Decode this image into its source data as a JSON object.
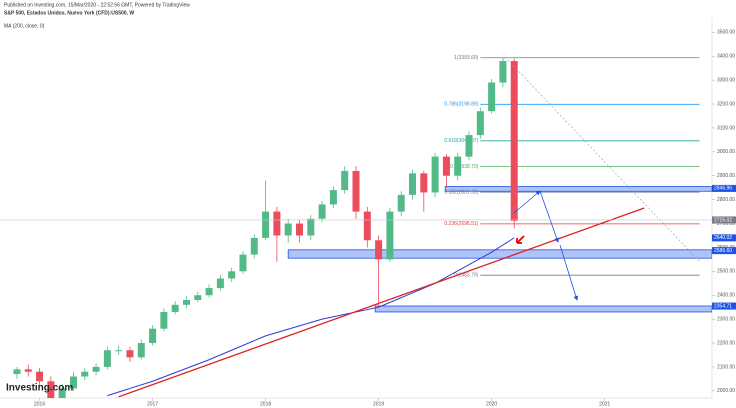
{
  "chart_data": {
    "type": "candlestick",
    "title": "S&P 500, Estados Unidos, Nuevo York (CFD):US500, W",
    "subtitle": "Published on Investing.com, 15/Mar/2020 - 22:52:56 GMT, Powered by TradingView",
    "indicator_label": "MA (200, close, 0)",
    "logo": "Investing.com",
    "xlim": [
      2015.65,
      2021.95
    ],
    "xticks": [
      2016,
      2017,
      2018,
      2019,
      2020,
      2021
    ],
    "ylim": [
      1970,
      3560
    ],
    "yticks": [
      {
        "value": 2000,
        "label": "2000.00"
      },
      {
        "value": 2100,
        "label": "2100.00"
      },
      {
        "value": 2200,
        "label": "2200.00"
      },
      {
        "value": 2300,
        "label": "2300.00"
      },
      {
        "value": 2400,
        "label": "2400.00"
      },
      {
        "value": 2500,
        "label": "2500.00"
      },
      {
        "value": 2600,
        "label": "2600.00"
      },
      {
        "value": 2700,
        "label": "2700.00"
      },
      {
        "value": 2800,
        "label": "2800.00"
      },
      {
        "value": 2900,
        "label": "2900.00"
      },
      {
        "value": 3000,
        "label": "3000.00"
      },
      {
        "value": 3100,
        "label": "3100.00"
      },
      {
        "value": 3200,
        "label": "3200.00"
      },
      {
        "value": 3300,
        "label": "3300.00"
      },
      {
        "value": 3400,
        "label": "3400.00"
      },
      {
        "value": 3500,
        "label": "3500.00"
      }
    ],
    "up_color": "#53b987",
    "down_color": "#eb4d5c",
    "x": [
      2015.8,
      2015.9,
      2016.0,
      2016.1,
      2016.2,
      2016.3,
      2016.4,
      2016.5,
      2016.6,
      2016.7,
      2016.8,
      2016.9,
      2017.0,
      2017.1,
      2017.2,
      2017.3,
      2017.4,
      2017.5,
      2017.6,
      2017.7,
      2017.8,
      2017.9,
      2018.0,
      2018.1,
      2018.2,
      2018.3,
      2018.4,
      2018.5,
      2018.6,
      2018.7,
      2018.8,
      2018.9,
      2019.0,
      2019.1,
      2019.2,
      2019.3,
      2019.4,
      2019.5,
      2019.6,
      2019.7,
      2019.8,
      2019.9,
      2020.0,
      2020.1,
      2020.2
    ],
    "open": [
      2070,
      2090,
      2080,
      2040,
      1960,
      2010,
      2060,
      2080,
      2100,
      2170,
      2170,
      2140,
      2200,
      2260,
      2330,
      2360,
      2380,
      2400,
      2430,
      2470,
      2500,
      2570,
      2640,
      2750,
      2650,
      2700,
      2650,
      2720,
      2780,
      2840,
      2920,
      2750,
      2630,
      2550,
      2750,
      2820,
      2910,
      2830,
      2980,
      2900,
      2980,
      3070,
      3170,
      3290,
      3380
    ],
    "high": [
      2100,
      2110,
      2095,
      2060,
      2030,
      2080,
      2095,
      2115,
      2185,
      2190,
      2185,
      2215,
      2275,
      2345,
      2375,
      2395,
      2415,
      2445,
      2485,
      2515,
      2585,
      2655,
      2880,
      2770,
      2720,
      2715,
      2735,
      2795,
      2855,
      2940,
      2940,
      2770,
      2650,
      2765,
      2835,
      2925,
      2920,
      2995,
      2990,
      2995,
      3085,
      3185,
      3305,
      3393.6,
      3390
    ],
    "low": [
      2050,
      2060,
      2020,
      1950,
      1950,
      2000,
      2045,
      2065,
      2090,
      2150,
      2120,
      2130,
      2190,
      2250,
      2320,
      2345,
      2370,
      2390,
      2420,
      2455,
      2490,
      2555,
      2630,
      2540,
      2620,
      2620,
      2630,
      2705,
      2765,
      2825,
      2720,
      2600,
      2346.71,
      2540,
      2730,
      2800,
      2750,
      2810,
      2850,
      2880,
      2965,
      3055,
      3160,
      3270,
      2680
    ],
    "close": [
      2090,
      2080,
      2040,
      1960,
      2010,
      2060,
      2080,
      2100,
      2170,
      2170,
      2140,
      2200,
      2260,
      2330,
      2360,
      2380,
      2400,
      2430,
      2470,
      2500,
      2570,
      2640,
      2750,
      2650,
      2700,
      2650,
      2720,
      2780,
      2840,
      2920,
      2750,
      2630,
      2550,
      2750,
      2820,
      2910,
      2830,
      2980,
      2900,
      2980,
      3070,
      3170,
      3290,
      3380,
      2711
    ],
    "ma": {
      "color": "#2a3bd6",
      "x": [
        2016.6,
        2017.0,
        2017.5,
        2018.0,
        2018.5,
        2019.0,
        2019.5,
        2020.0,
        2020.2
      ],
      "values": [
        1980,
        2040,
        2130,
        2230,
        2300,
        2350,
        2450,
        2580,
        2640
      ]
    },
    "trendline": {
      "color": "#e02020",
      "x": [
        2016.7,
        2021.35
      ],
      "values": [
        1975,
        2765
      ]
    },
    "fib_x": [
      2019.9,
      2021.84
    ],
    "fib_levels": [
      {
        "label": "1(3393.60)",
        "value": 3393.6,
        "color": "#787b86"
      },
      {
        "label": "0.786(3198.89)",
        "value": 3198.89,
        "color": "#2196f3"
      },
      {
        "label": "0.618(3046.07)",
        "value": 3046.07,
        "color": "#26a69a"
      },
      {
        "label": "0.5(2938.70)",
        "value": 2938.7,
        "color": "#4caf50"
      },
      {
        "label": "0.382(2831.33)",
        "value": 2831.33,
        "color": "#5a6fa0"
      },
      {
        "label": "0.236(2698.51)",
        "value": 2698.51,
        "color": "#e53935"
      },
      {
        "label": "0(2483.79)",
        "value": 2483.79,
        "color": "#787b86"
      }
    ],
    "zones": [
      {
        "x": 2019.59,
        "low": 2835,
        "high": 2855
      },
      {
        "x": 2018.2,
        "low": 2555,
        "high": 2590
      },
      {
        "x": 2018.97,
        "low": 2330,
        "high": 2355
      }
    ],
    "price_tags": [
      {
        "value": 2846.96,
        "label": "2846.96",
        "color": "#1e53e5"
      },
      {
        "value": 2715.02,
        "label": "2715.02",
        "color": "#787b86"
      },
      {
        "value": 2640.02,
        "label": "2640.02",
        "color": "#1e53e5"
      },
      {
        "value": 2586.6,
        "label": "2586.60",
        "color": "#1e53e5"
      },
      {
        "value": 2354.71,
        "label": "2354.71",
        "color": "#1e53e5"
      }
    ]
  }
}
